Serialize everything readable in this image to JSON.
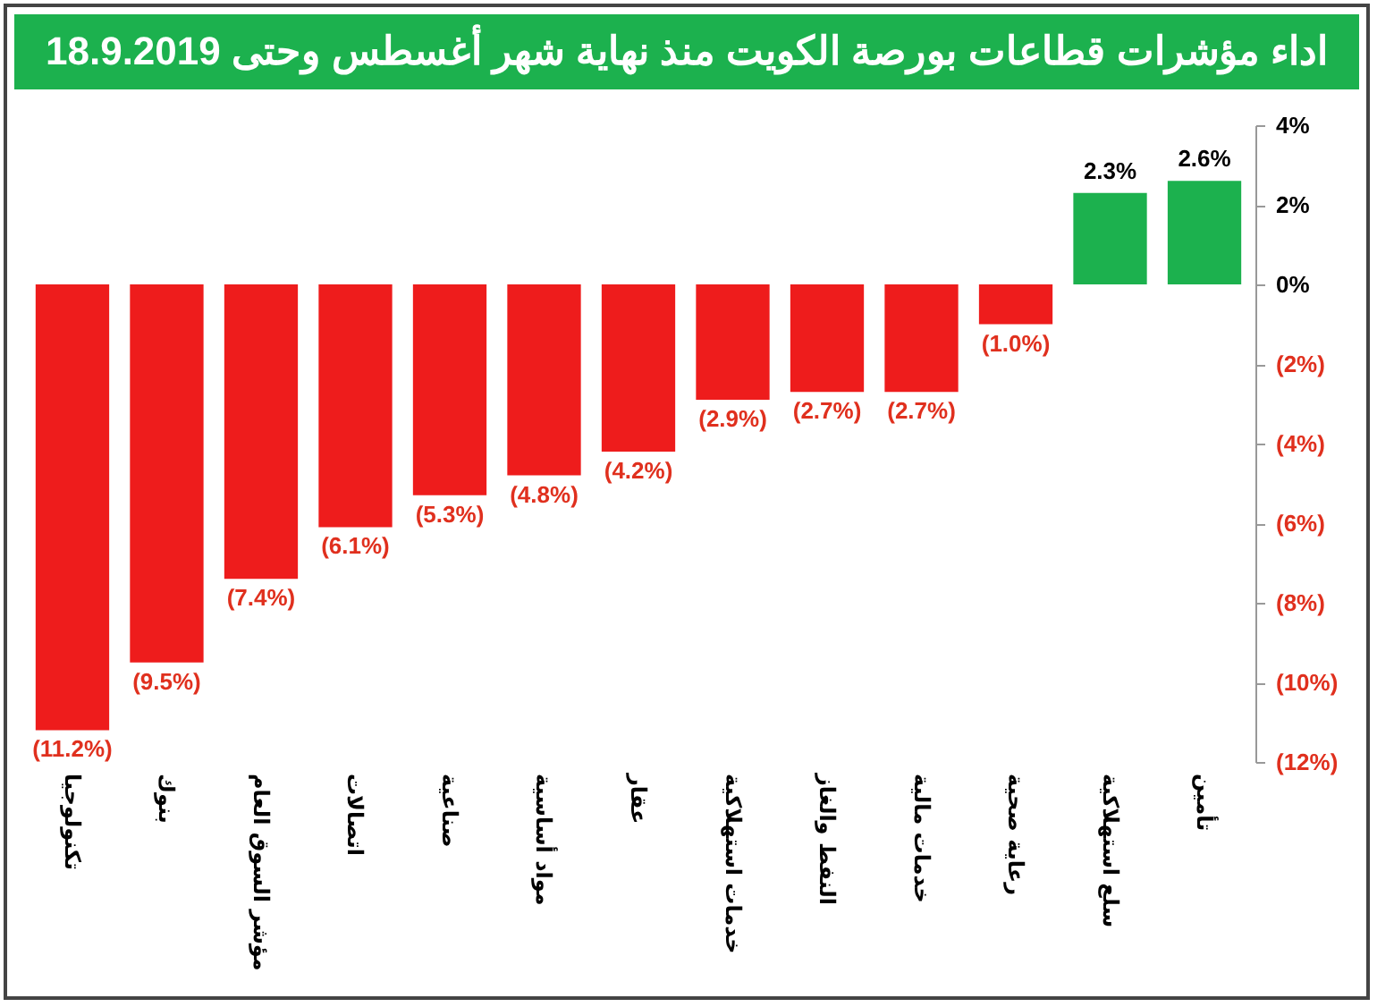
{
  "chart_data": {
    "type": "bar",
    "title": "اداء مؤشرات قطاعات بورصة الكويت منذ نهاية شهر أغسطس وحتى 18.9.2019",
    "categories": [
      "تكنولوجيا",
      "بنوك",
      "مؤشر السوق العام",
      "اتصالات",
      "صناعية",
      "مواد أساسية",
      "عقار",
      "خدمات استهلاكية",
      "النفط والغاز",
      "خدمات مالية",
      "رعاية صحية",
      "سلع استهلاكية",
      "تأمين"
    ],
    "values": [
      -11.2,
      -9.5,
      -7.4,
      -6.1,
      -5.3,
      -4.8,
      -4.2,
      -2.9,
      -2.7,
      -2.7,
      -1.0,
      2.3,
      2.6
    ],
    "value_labels": [
      "(11.2%)",
      "(9.5%)",
      "(7.4%)",
      "(6.1%)",
      "(5.3%)",
      "(4.8%)",
      "(4.2%)",
      "(2.9%)",
      "(2.7%)",
      "(2.7%)",
      "(1.0%)",
      "2.3%",
      "2.6%"
    ],
    "colors": [
      "#ee1c1c",
      "#ee1c1c",
      "#ee1c1c",
      "#ee1c1c",
      "#ee1c1c",
      "#ee1c1c",
      "#ee1c1c",
      "#ee1c1c",
      "#ee1c1c",
      "#ee1c1c",
      "#ee1c1c",
      "#1cb14e",
      "#1cb14e"
    ],
    "ylim": [
      -12,
      4
    ],
    "yticks": [
      {
        "value": -12,
        "label": "(12%)"
      },
      {
        "value": -10,
        "label": "(10%)"
      },
      {
        "value": -8,
        "label": "(8%)"
      },
      {
        "value": -6,
        "label": "(6%)"
      },
      {
        "value": -4,
        "label": "(4%)"
      },
      {
        "value": -2,
        "label": "(2%)"
      },
      {
        "value": 0,
        "label": "0%"
      },
      {
        "value": 2,
        "label": "2%"
      },
      {
        "value": 4,
        "label": "4%"
      }
    ],
    "grid": false
  }
}
